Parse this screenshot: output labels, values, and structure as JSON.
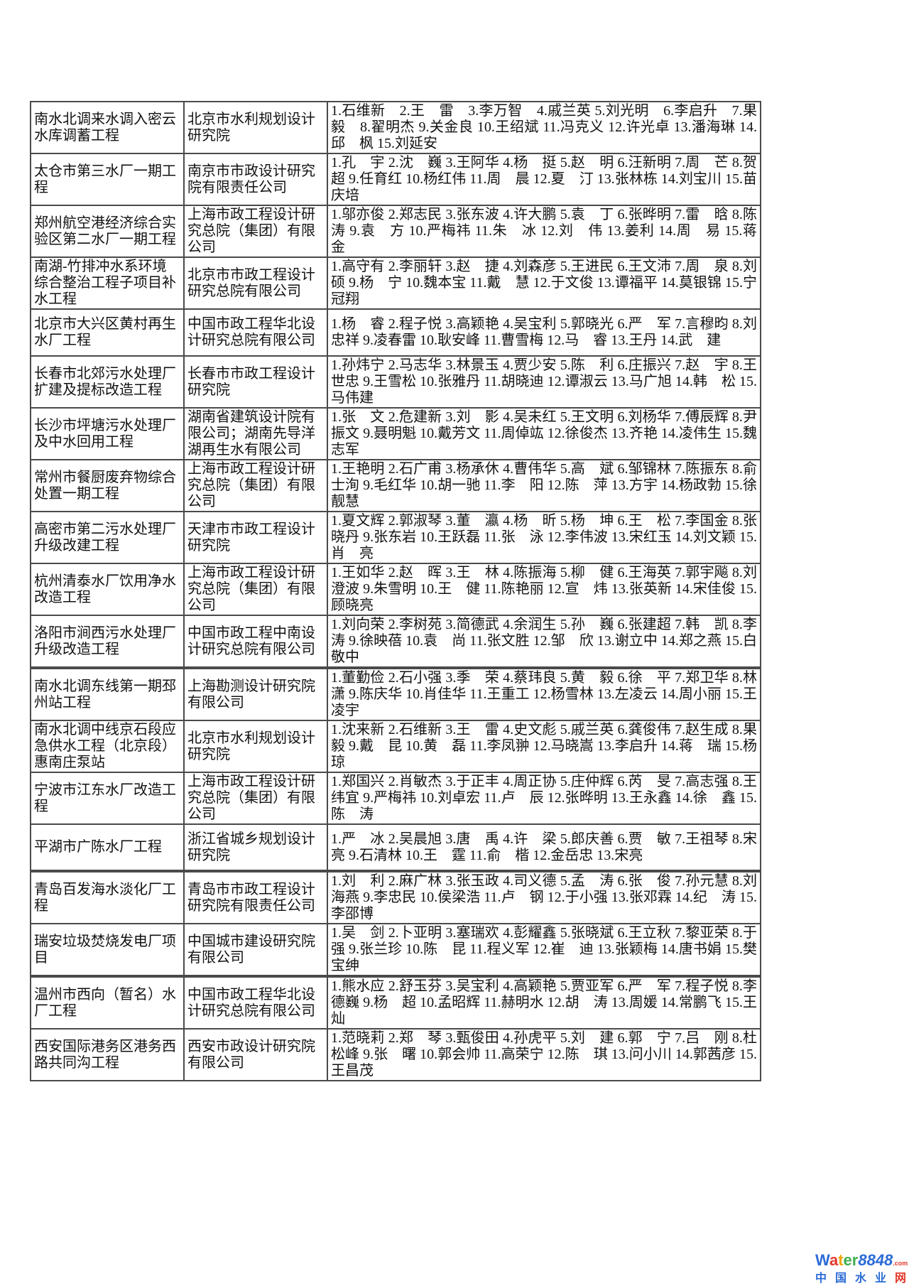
{
  "table": {
    "rows": [
      {
        "project": "南水北调来水调入密云水库调蓄工程",
        "institute": "北京市水利规划设计研究院",
        "names": "1.石维新　2.王　雷　3.李万智　4.戚兰英 5.刘光明　6.李启升　7.果　毅　8.翟明杰 9.关金良 10.王绍斌 11.冯克义 12.许光卓 13.潘海琳 14.邱　枫 15.刘延安"
      },
      {
        "project": "太仓市第三水厂一期工程",
        "institute": "南京市市政设计研究院有限责任公司",
        "names": "1.孔　宇 2.沈　巍 3.王阿华 4.杨　挺 5.赵　明 6.汪新明 7.周　芒 8.贺　超 9.任育红 10.杨红伟 11.周　晨 12.夏　汀 13.张林栋 14.刘宝川 15.苗庆培"
      },
      {
        "project": "郑州航空港经济综合实验区第二水厂一期工程",
        "institute": "上海市政工程设计研究总院（集团）有限公司",
        "names": "1.邬亦俊 2.郑志民 3.张东波 4.许大鹏 5.袁　丁 6.张晔明 7.雷　晗 8.陈　涛 9.袁　方 10.严梅祎 11.朱　冰 12.刘　伟 13.姜利 14.周　易 15.蒋　金"
      },
      {
        "project": "南湖-竹排冲水系环境综合整治工程子项目补水工程",
        "institute": "北京市市政工程设计研究总院有限公司",
        "names": "1.高守有 2.李丽轩 3.赵　捷 4.刘森彦 5.王进民 6.王文沛 7.周　泉 8.刘　硕 9.杨　宁 10.魏本宝 11.戴　慧 12.于文俊 13.谭福平 14.莫银锦 15.宁冠翔"
      },
      {
        "project": "北京市大兴区黄村再生水厂工程",
        "institute": "中国市政工程华北设计研究总院有限公司",
        "names": "1.杨　睿 2.程子悦 3.高颖艳 4.吴宝利 5.郭晓光 6.严　军 7.言穆昀 8.刘忠祥 9.凌春雷 10.耿安峰 11.曹雪梅 12.马　睿 13.王丹 14.武　建"
      },
      {
        "project": "长春市北郊污水处理厂扩建及提标改造工程",
        "institute": "长春市市政工程设计研究院",
        "names": "1.孙炜宁 2.马志华 3.林景玉 4.贾少安 5.陈　利 6.庄振兴 7.赵　宇 8.王世忠 9.王雪松 10.张雅丹 11.胡晓迪 12.谭淑云 13.马广旭 14.韩　松 15.马伟建"
      },
      {
        "project": "长沙市坪塘污水处理厂及中水回用工程",
        "institute": "湖南省建筑设计院有限公司；湖南先导洋湖再生水有限公司",
        "names": "1.张　文 2.危建新 3.刘　影 4.吴未红 5.王文明 6.刘杨华 7.傅辰辉 8.尹振文 9.聂明魁 10.戴芳文 11.周倬竑 12.徐俊杰 13.齐艳 14.凌伟生 15.魏志军"
      },
      {
        "project": "常州市餐厨废弃物综合处置一期工程",
        "institute": "上海市政工程设计研究总院（集团）有限公司",
        "names": "1.王艳明 2.石广甫 3.杨承休 4.曹伟华 5.高　斌 6.邹锦林 7.陈振东 8.俞士洵 9.毛红华 10.胡一驰 11.李　阳 12.陈　萍 13.方宇 14.杨政勃 15.徐靓慧"
      },
      {
        "project": "高密市第二污水处理厂升级改建工程",
        "institute": "天津市市政工程设计研究院",
        "names": "1.夏文辉 2.郭淑琴 3.董　瀛 4.杨　昕 5.杨　坤 6.王　松 7.李国金 8.张晓丹 9.张东岩 10.王跃磊 11.张　泳 12.李伟波 13.宋红玉 14.刘文颖 15.肖　亮"
      },
      {
        "project": "杭州清泰水厂饮用净水改造工程",
        "institute": "上海市政工程设计研究总院（集团）有限公司",
        "names": "1.王如华 2.赵　晖 3.王　林 4.陈振海 5.柳　健 6.王海英 7.郭宇飚 8.刘澄波 9.朱雪明 10.王　健 11.陈艳丽 12.宣　炜 13.张英新 14.宋佳俊 15.顾晓亮"
      },
      {
        "project": "洛阳市涧西污水处理厂升级改造工程",
        "institute": "中国市政工程中南设计研究总院有限公司",
        "names": "1.刘向荣 2.李树苑 3.简德武 4.余润生 5.孙　巍 6.张建超 7.韩　凯 8.李　涛 9.徐映蓓 10.袁　尚 11.张文胜 12.邹　欣 13.谢立中 14.郑之燕 15.白敬中"
      },
      {
        "project": "南水北调东线第一期邳州站工程",
        "institute": "上海勘测设计研究院有限公司",
        "names": "1.董勤俭 2.石小强 3.季　荣 4.蔡玮良 5.黄　毅 6.徐　平 7.郑卫华 8.林　潇 9.陈庆华 10.肖佳华 11.王重工 12.杨雪林 13.左凌云 14.周小丽 15.王凌宇"
      },
      {
        "project": "南水北调中线京石段应急供水工程（北京段）惠南庄泵站",
        "institute": "北京市水利规划设计研究院",
        "names": "1.沈来新 2.石维新 3.王　雷 4.史文彪 5.戚兰英 6.龚俊伟 7.赵生成 8.果　毅 9.戴　昆 10.黄　磊 11.李凤翀 12.马晓嵩 13.李启升 14.蒋　瑞 15.杨　琼"
      },
      {
        "project": "宁波市江东水厂改造工程",
        "institute": "上海市政工程设计研究总院（集团）有限公司",
        "names": "1.郑国兴 2.肖敏杰 3.于正丰 4.周正协 5.庄仲辉 6.芮　旻 7.高志强 8.王纬宜 9.严梅祎 10.刘卓宏 11.卢　辰 12.张晔明 13.王永鑫 14.徐　鑫 15.陈　涛"
      },
      {
        "project": "平湖市广陈水厂工程",
        "institute": "浙江省城乡规划设计研究院",
        "names": "1.严　冰 2.吴晨旭 3.唐　禹 4.许　梁 5.郎庆善 6.贾　敏 7.王祖琴 8.宋　亮 9.石清林 10.王　霆 11.俞　楷 12.金岳忠 13.宋亮"
      },
      {
        "project": "青岛百发海水淡化厂工程",
        "institute": "青岛市市政工程设计研究院有限责任公司",
        "names": "1.刘　利 2.麻广林 3.张玉政 4.司义德 5.孟　涛 6.张　俊 7.孙元慧 8.刘海燕 9.李忠民 10.侯梁浩 11.卢　钢 12.于小强 13.张邓霖 14.纪　涛 15.李邵博"
      },
      {
        "project": "瑞安垃圾焚烧发电厂项目",
        "institute": "中国城市建设研究院有限公司",
        "names": "1.吴　剑 2.卜亚明 3.塞瑞欢 4.彭耀鑫 5.张晓斌 6.王立秋 7.黎亚荣 8.于　强 9.张兰珍 10.陈　昆 11.程义军 12.崔　迪 13.张颖梅 14.唐书娟 15.樊宝绅"
      },
      {
        "project": "温州市西向（暂名）水厂工程",
        "institute": "中国市政工程华北设计研究总院有限公司",
        "names": "1.熊水应 2.舒玉芬 3.吴宝利 4.高颖艳 5.贾亚军 6.严　军 7.程子悦 8.李德巍 9.杨　超 10.孟昭辉 11.赫明水 12.胡　涛 13.周媛 14.常鹏飞 15.王　灿"
      },
      {
        "project": "西安国际港务区港务西路共同沟工程",
        "institute": "西安市政设计研究院有限公司",
        "names": "1.范晓莉 2.郑　琴 3.甄俊田 4.孙虎平 5.刘　建 6.郭　宁 7.吕　刚 8.杜松峰 9.张　曙 10.郭会帅 11.高荣宁 12.陈　琪 13.问小川 14.郭茜彦 15.王昌茂"
      }
    ]
  },
  "logo": {
    "word": "Water",
    "word_colors": [
      "#2b6bd6",
      "#e2382b",
      "#f0a500",
      "#3fae49",
      "#3fae49"
    ],
    "number": "8848",
    "number_color": "#2b6bd6",
    "dotcom": ".com",
    "dotcom_color": "#e2382b",
    "tagline": "中国水业网",
    "tagline_colors": [
      "#2b6bd6",
      "#2b6bd6",
      "#2b6bd6",
      "#2b6bd6",
      "#e2382b"
    ]
  }
}
